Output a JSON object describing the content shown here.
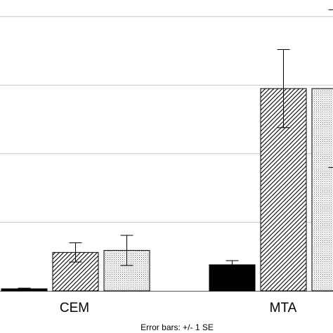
{
  "chart_data": {
    "type": "bar",
    "categories": [
      "CEM",
      "MTA"
    ],
    "ylim": [
      0,
      4.2
    ],
    "grid": true,
    "series": [
      {
        "values": [
          0.03,
          0.38
        ],
        "errors": [
          0.01,
          0.06
        ],
        "fill": "solid",
        "color": "#000000"
      },
      {
        "values": [
          0.56,
          2.95
        ],
        "errors": [
          0.14,
          0.57
        ],
        "fill": "diagonal-hatch",
        "color": "#000000"
      },
      {
        "values": [
          0.59,
          2.95
        ],
        "errors": [
          0.22,
          1.15
        ],
        "fill": "dotted",
        "color": "#888888"
      }
    ],
    "caption": "Error bars: +/- 1 SE"
  },
  "colors": {
    "grid": "#c9c9c9",
    "axis": "#555555",
    "background": "#ffffff"
  }
}
